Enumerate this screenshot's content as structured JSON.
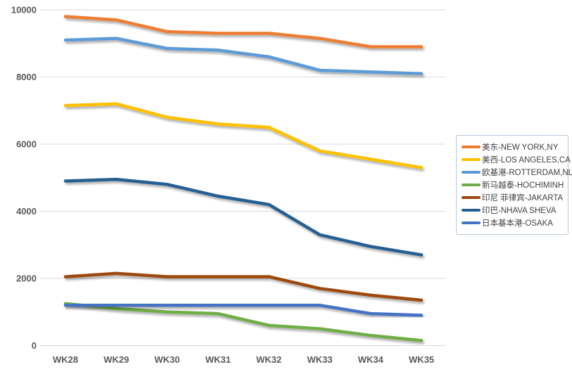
{
  "chart_data": {
    "type": "line",
    "title": "",
    "xlabel": "",
    "ylabel": "",
    "categories": [
      "WK28",
      "WK29",
      "WK30",
      "WK31",
      "WK32",
      "WK33",
      "WK34",
      "WK35"
    ],
    "yticks": [
      0,
      2000,
      4000,
      6000,
      8000,
      10000
    ],
    "ytick_labels": [
      "0",
      "2000",
      "4000",
      "6000",
      "8000",
      "10000"
    ],
    "ylim": [
      0,
      10000
    ],
    "grid": true,
    "legend_position": "right",
    "series": [
      {
        "key": "new-york",
        "name": "美东-NEW YORK,NY",
        "color": "#ED7D31",
        "values": [
          9800,
          9700,
          9350,
          9300,
          9300,
          9150,
          8900,
          8900
        ]
      },
      {
        "key": "los-angeles",
        "name": "美西-LOS ANGELES,CA",
        "color": "#FFC000",
        "values": [
          7150,
          7200,
          6800,
          6600,
          6500,
          5800,
          5550,
          5300
        ]
      },
      {
        "key": "rotterdam",
        "name": "欧基港-ROTTERDAM,NL",
        "color": "#5B9BD5",
        "values": [
          9100,
          9150,
          8850,
          8800,
          8600,
          8200,
          8150,
          8100
        ]
      },
      {
        "key": "hochiminh",
        "name": "新马越泰-HOCHIMINH",
        "color": "#70AD47",
        "values": [
          1250,
          1100,
          1000,
          950,
          600,
          500,
          300,
          150
        ]
      },
      {
        "key": "jakarta",
        "name": "印尼 菲律宾-JAKARTA",
        "color": "#9E480E",
        "values": [
          2050,
          2150,
          2050,
          2050,
          2050,
          1700,
          1500,
          1350
        ]
      },
      {
        "key": "nhava-sheva",
        "name": "印巴-NHAVA SHEVA",
        "color": "#255E91",
        "values": [
          4900,
          4950,
          4800,
          4450,
          4200,
          3300,
          2950,
          2700
        ]
      },
      {
        "key": "osaka",
        "name": "日本基本港-OSAKA",
        "color": "#4472C4",
        "values": [
          1200,
          1200,
          1200,
          1200,
          1200,
          1200,
          950,
          900
        ]
      }
    ]
  },
  "style": {
    "gridline_color": "#d9d9d9",
    "axis_text_color": "#595959",
    "legend_text_color": "#404040",
    "legend_border_color": "#b2c6dc"
  }
}
